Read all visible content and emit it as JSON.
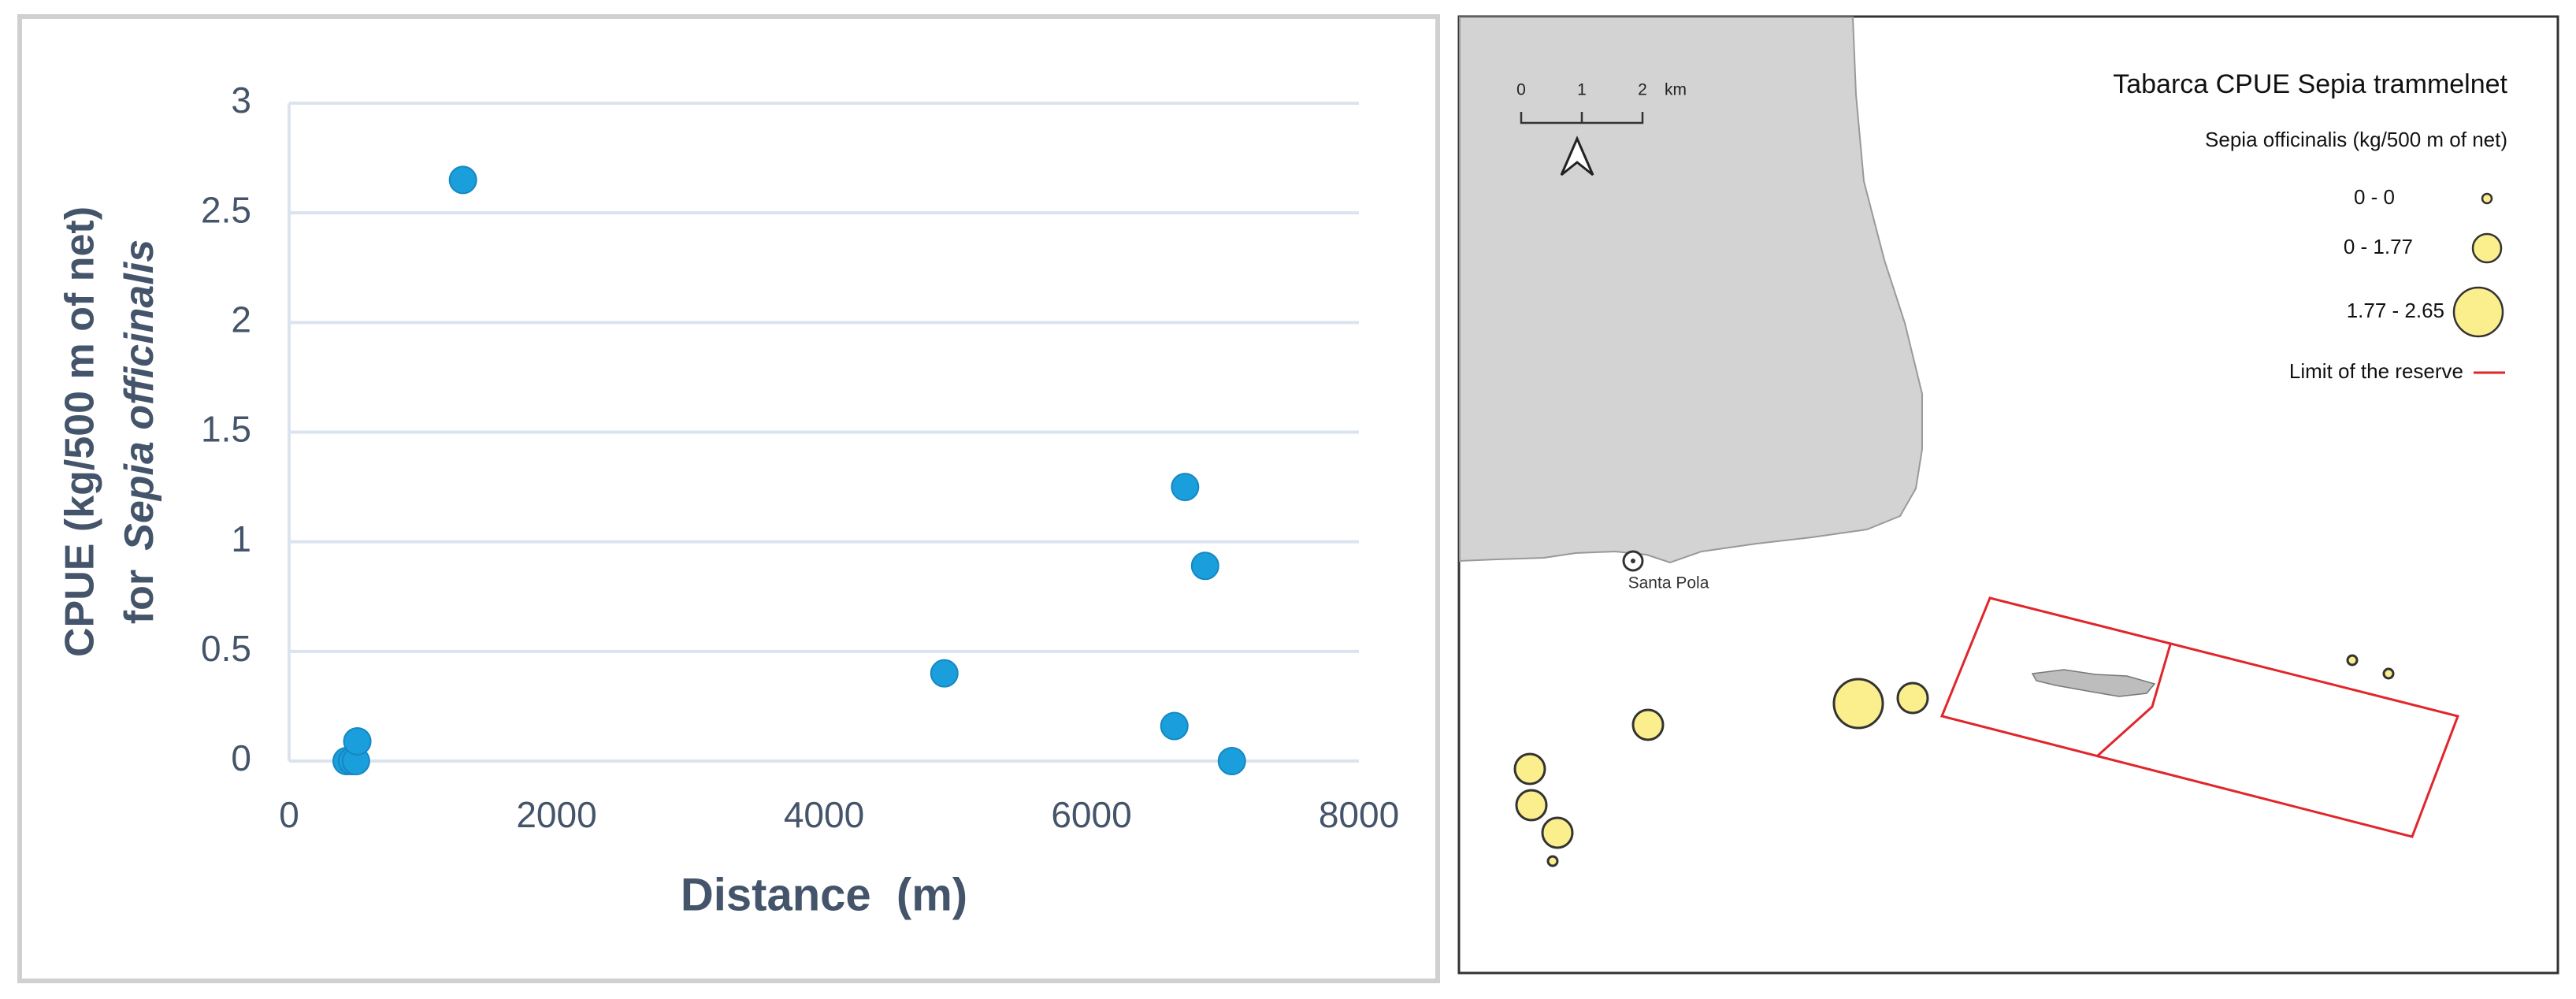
{
  "chart_data": {
    "type": "scatter",
    "ylabel": "CPUE (kg/500 m of net)",
    "ylabel_prefix": "for",
    "ylabel_species": "Sepia officinalis",
    "xlabel": "Distance  (m)",
    "x": [
      430,
      470,
      500,
      510,
      1300,
      4900,
      6620,
      6700,
      6850,
      7050
    ],
    "values": [
      0,
      0,
      0,
      0.09,
      2.65,
      0.4,
      0.16,
      1.25,
      0.89,
      0
    ],
    "color": "#1a9fdc",
    "xlim": [
      0,
      8000
    ],
    "xticks": [
      0,
      2000,
      4000,
      6000,
      8000
    ],
    "ylim": [
      0,
      3
    ],
    "yticks": [
      0,
      0.5,
      1,
      1.5,
      2,
      2.5,
      3
    ],
    "grid": true
  },
  "map": {
    "title": "Tabarca CPUE Sepia trammelnet",
    "subtitle": "Sepia officinalis (kg/500 m of net)",
    "legend": [
      "0 - 0",
      "0 - 1.77",
      "1.77 - 2.65",
      "Limit of the reserve"
    ],
    "scale_labels": [
      "0",
      "1",
      "2",
      "km"
    ],
    "place": "Santa Pola"
  }
}
